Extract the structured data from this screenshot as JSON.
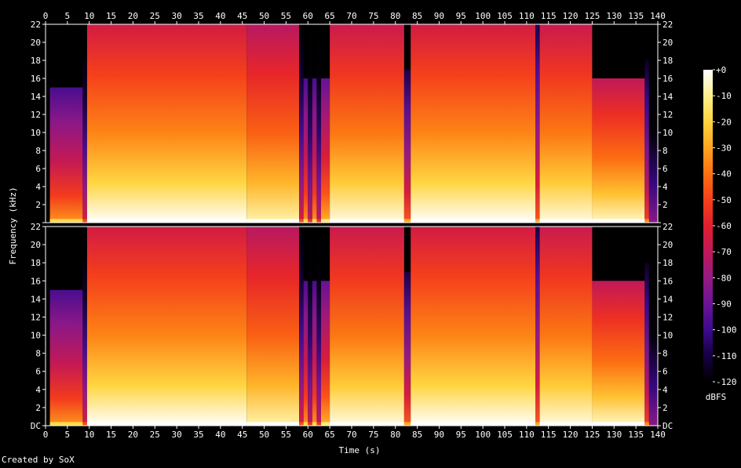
{
  "footer": {
    "credit": "Created by SoX"
  },
  "chart_data": {
    "type": "heatmap",
    "subtype": "spectrogram",
    "title": "",
    "xlabel": "Time (s)",
    "ylabel": "Frequency (kHz)",
    "xlim": [
      0,
      140
    ],
    "ylim": [
      0,
      22
    ],
    "x_ticks": [
      "0",
      "5",
      "10",
      "15",
      "20",
      "25",
      "30",
      "35",
      "40",
      "45",
      "50",
      "55",
      "60",
      "65",
      "70",
      "75",
      "80",
      "85",
      "90",
      "95",
      "100",
      "105",
      "110",
      "115",
      "120",
      "125",
      "130",
      "135",
      "140"
    ],
    "y_ticks": [
      "DC",
      "2",
      "4",
      "6",
      "8",
      "10",
      "12",
      "14",
      "16",
      "18",
      "20",
      "22"
    ],
    "channels": 2,
    "colorbar": {
      "label": "dBFS",
      "range": [
        -120,
        0
      ],
      "ticks": [
        "+0",
        "-10",
        "-20",
        "-30",
        "-40",
        "-50",
        "-60",
        "-70",
        "-80",
        "-90",
        "-100",
        "-110",
        "-120"
      ],
      "colors": [
        "#000000",
        "#160040",
        "#3c0a8c",
        "#6a1496",
        "#961a82",
        "#c0185a",
        "#e21e2e",
        "#f6401a",
        "#fc7010",
        "#fea520",
        "#ffd43c",
        "#fff08c",
        "#ffffff"
      ]
    },
    "segments": [
      {
        "t": [
          0,
          1
        ],
        "top_khz": 0,
        "level": 0
      },
      {
        "t": [
          1,
          8.5
        ],
        "top_khz": 15,
        "level": 0.45
      },
      {
        "t": [
          8.5,
          9.5
        ],
        "top_khz": 19,
        "level": 0.2
      },
      {
        "t": [
          9.5,
          46
        ],
        "top_khz": 22,
        "level": 0.72
      },
      {
        "t": [
          46,
          58
        ],
        "top_khz": 22,
        "level": 0.66
      },
      {
        "t": [
          58,
          59
        ],
        "top_khz": 22,
        "level": 0.2
      },
      {
        "t": [
          59,
          60
        ],
        "top_khz": 16,
        "level": 0.45
      },
      {
        "t": [
          60,
          61
        ],
        "top_khz": 22,
        "level": 0.15
      },
      {
        "t": [
          61,
          62
        ],
        "top_khz": 16,
        "level": 0.45
      },
      {
        "t": [
          62,
          63
        ],
        "top_khz": 22,
        "level": 0.15
      },
      {
        "t": [
          63,
          65
        ],
        "top_khz": 16,
        "level": 0.5
      },
      {
        "t": [
          65,
          82
        ],
        "top_khz": 22,
        "level": 0.7
      },
      {
        "t": [
          82,
          83.5
        ],
        "top_khz": 17,
        "level": 0.35
      },
      {
        "t": [
          83.5,
          112
        ],
        "top_khz": 22,
        "level": 0.72
      },
      {
        "t": [
          112,
          113
        ],
        "top_khz": 22,
        "level": 0.35
      },
      {
        "t": [
          113,
          125
        ],
        "top_khz": 22,
        "level": 0.7
      },
      {
        "t": [
          125,
          137
        ],
        "top_khz": 16,
        "level": 0.68
      },
      {
        "t": [
          137,
          138
        ],
        "top_khz": 18,
        "level": 0.3
      },
      {
        "t": [
          138,
          140
        ],
        "top_khz": 22,
        "level": 0.03
      }
    ]
  }
}
